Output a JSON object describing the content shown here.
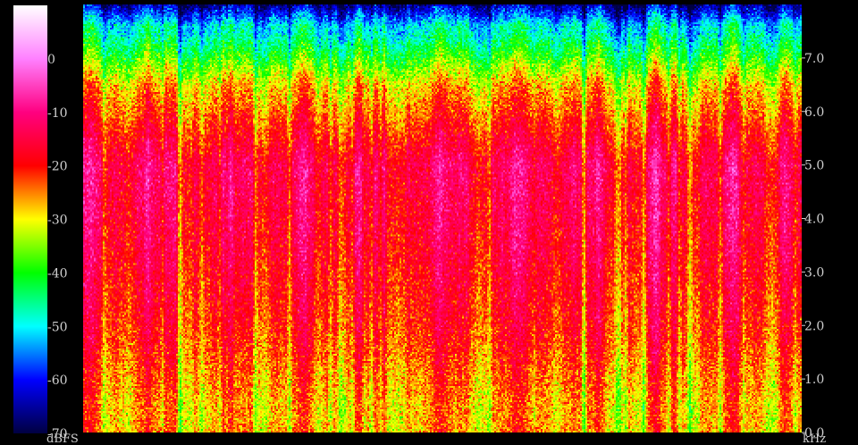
{
  "chart_data": {
    "type": "heatmap",
    "title": "",
    "x_axis": {
      "label": "",
      "ticks": []
    },
    "y_axis": {
      "unit": "kHz",
      "range": [
        0.0,
        8.0
      ],
      "ticks": [
        0.0,
        1.0,
        2.0,
        3.0,
        4.0,
        5.0,
        6.0,
        7.0
      ],
      "tick_labels": [
        "0.0",
        "1.0",
        "2.0",
        "3.0",
        "4.0",
        "5.0",
        "6.0",
        "7.0"
      ],
      "side": "right"
    },
    "color_scale": {
      "unit": "dBFS",
      "range": [
        -70,
        10
      ],
      "ticks": [
        0,
        -10,
        -20,
        -30,
        -40,
        -50,
        -60,
        -70
      ],
      "tick_labels": [
        "0",
        "-10",
        "-20",
        "-30",
        "-40",
        "-50",
        "-60",
        "-70"
      ],
      "side": "left",
      "stops": [
        {
          "db": 10,
          "color": "#ffffff"
        },
        {
          "db": 0,
          "color": "#ff80ff"
        },
        {
          "db": -10,
          "color": "#ff0080"
        },
        {
          "db": -20,
          "color": "#ff0000"
        },
        {
          "db": -25,
          "color": "#ff8000"
        },
        {
          "db": -30,
          "color": "#ffff00"
        },
        {
          "db": -40,
          "color": "#00ff00"
        },
        {
          "db": -50,
          "color": "#00ffff"
        },
        {
          "db": -60,
          "color": "#0000ff"
        },
        {
          "db": -70,
          "color": "#000040"
        }
      ]
    },
    "typical_levels_dbfs": [
      {
        "khz_range": [
          7.0,
          8.0
        ],
        "level": -48
      },
      {
        "khz_range": [
          6.0,
          7.0
        ],
        "level": -27
      },
      {
        "khz_range": [
          4.0,
          6.0
        ],
        "level": -13
      },
      {
        "khz_range": [
          2.5,
          4.0
        ],
        "level": -16
      },
      {
        "khz_range": [
          1.0,
          2.5
        ],
        "level": -20
      },
      {
        "khz_range": [
          0.0,
          1.0
        ],
        "level": -26
      }
    ],
    "grid": false,
    "legend": "colorbar-left"
  }
}
